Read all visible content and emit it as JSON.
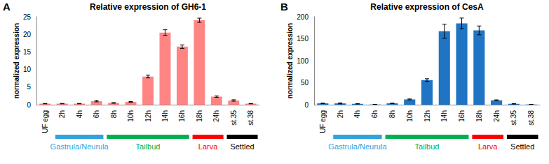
{
  "chart_data": [
    {
      "type": "bar",
      "label": "A",
      "title": "Relative expression of GH6-1",
      "y_label": "normalized expression",
      "categories": [
        "UF egg",
        "2h",
        "4h",
        "6h",
        "8h",
        "10h",
        "12h",
        "14h",
        "16h",
        "18h",
        "24h",
        "st.35",
        "st.38"
      ],
      "values": [
        0.3,
        0.3,
        0.3,
        1.0,
        0.5,
        0.8,
        8.0,
        20.5,
        16.5,
        24.0,
        2.3,
        1.2,
        0.3
      ],
      "errors": [
        0.05,
        0.05,
        0.05,
        0.2,
        0.1,
        0.1,
        0.4,
        0.8,
        0.5,
        0.6,
        0.2,
        0.2,
        0.05
      ],
      "color": "#ff8585",
      "ylim": [
        0,
        25
      ],
      "yticks": [
        0,
        5,
        10,
        15,
        20,
        25
      ],
      "grid": false,
      "stages": [
        {
          "label": "Gastrula/Neurula",
          "color": "#2ea3dc",
          "start": "2h",
          "end": "6h"
        },
        {
          "label": "Tailbud",
          "color": "#00b050",
          "start": "8h",
          "end": "16h"
        },
        {
          "label": "Larva",
          "color": "#ff0000",
          "start": "18h",
          "end": "24h"
        },
        {
          "label": "Settled",
          "color": "#000000",
          "start": "st.35",
          "end": "st.38"
        }
      ]
    },
    {
      "type": "bar",
      "label": "B",
      "title": "Relative expression of CesA",
      "y_label": "normalized expression",
      "categories": [
        "UF egg",
        "2h",
        "4h",
        "6h",
        "8h",
        "10h",
        "12h",
        "14h",
        "16h",
        "18h",
        "24h",
        "st.35",
        "st.38"
      ],
      "values": [
        3,
        3,
        2,
        0.5,
        3,
        12,
        56,
        167,
        185,
        169,
        10,
        2,
        0.5
      ],
      "errors": [
        0.5,
        1,
        0.5,
        0.2,
        0.5,
        1,
        3,
        16,
        12,
        10,
        1,
        0.5,
        0.2
      ],
      "color": "#1f74c4",
      "ylim": [
        0,
        200
      ],
      "yticks": [
        0,
        50,
        100,
        150,
        200
      ],
      "grid": false,
      "stages": [
        {
          "label": "Gastrula/Neurula",
          "color": "#2ea3dc",
          "start": "2h",
          "end": "6h"
        },
        {
          "label": "Tailbud",
          "color": "#00b050",
          "start": "8h",
          "end": "16h"
        },
        {
          "label": "Larva",
          "color": "#ff0000",
          "start": "18h",
          "end": "24h"
        },
        {
          "label": "Settled",
          "color": "#000000",
          "start": "st.35",
          "end": "st.38"
        }
      ]
    }
  ]
}
